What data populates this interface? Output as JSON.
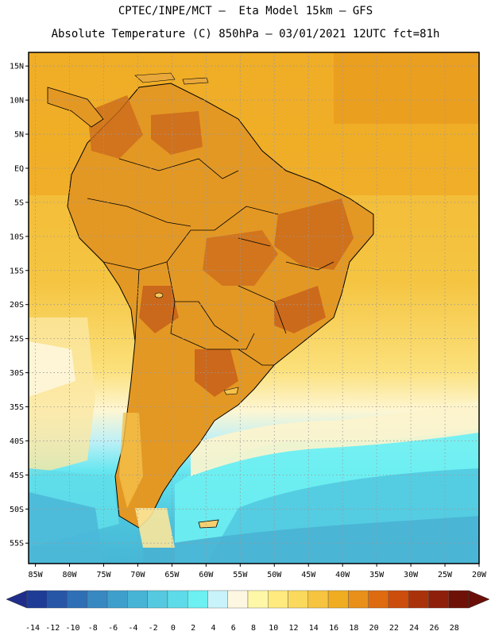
{
  "header": {
    "line1": "CPTEC/INPE/MCT –  Eta Model 15km – GFS",
    "line2": "Absolute Temperature (C) 850hPa – 03/01/2021 12UTC fct=81h"
  },
  "map": {
    "lon_min": -86,
    "lon_max": -20,
    "lat_min": -58,
    "lat_max": 17,
    "lat_labels": [
      "15N",
      "10N",
      "5N",
      "EQ",
      "5S",
      "10S",
      "15S",
      "20S",
      "25S",
      "30S",
      "35S",
      "40S",
      "45S",
      "50S",
      "55S"
    ],
    "lat_values": [
      15,
      10,
      5,
      0,
      -5,
      -10,
      -15,
      -20,
      -25,
      -30,
      -35,
      -40,
      -45,
      -50,
      -55
    ],
    "lon_labels": [
      "85W",
      "80W",
      "75W",
      "70W",
      "65W",
      "60W",
      "55W",
      "50W",
      "45W",
      "40W",
      "35W",
      "30W",
      "25W",
      "20W"
    ],
    "lon_values": [
      -85,
      -80,
      -75,
      -70,
      -65,
      -60,
      -55,
      -50,
      -45,
      -40,
      -35,
      -30,
      -25,
      -20
    ],
    "gridline_color": "#999999"
  },
  "colorbar": {
    "labels": [
      "-14",
      "-12",
      "-10",
      "-8",
      "-6",
      "-4",
      "-2",
      "0",
      "2",
      "4",
      "6",
      "8",
      "10",
      "12",
      "14",
      "16",
      "18",
      "20",
      "22",
      "24",
      "26",
      "28"
    ],
    "colors": [
      "#1e3c96",
      "#2756a6",
      "#2f6fb6",
      "#3888c2",
      "#3f9fcc",
      "#47b4d6",
      "#55c9e0",
      "#5edbe9",
      "#6cf0f2",
      "#c9f3fa",
      "#fdf7e2",
      "#fef7a8",
      "#feea7e",
      "#fbd95c",
      "#f6c43e",
      "#f1ad22",
      "#e8901a",
      "#de6b10",
      "#cc4d0c",
      "#aa320a",
      "#8e1f0a",
      "#6e1208"
    ],
    "left_arrow_color": "#1f2e8a",
    "right_arrow_color": "#6a0f08"
  },
  "colors": {
    "ocean_warm": "#f2b62c",
    "ocean_mid": "#f7cd4c",
    "land_warm": "#e29a22",
    "land_hot": "#d27720",
    "coast": "#000000"
  }
}
